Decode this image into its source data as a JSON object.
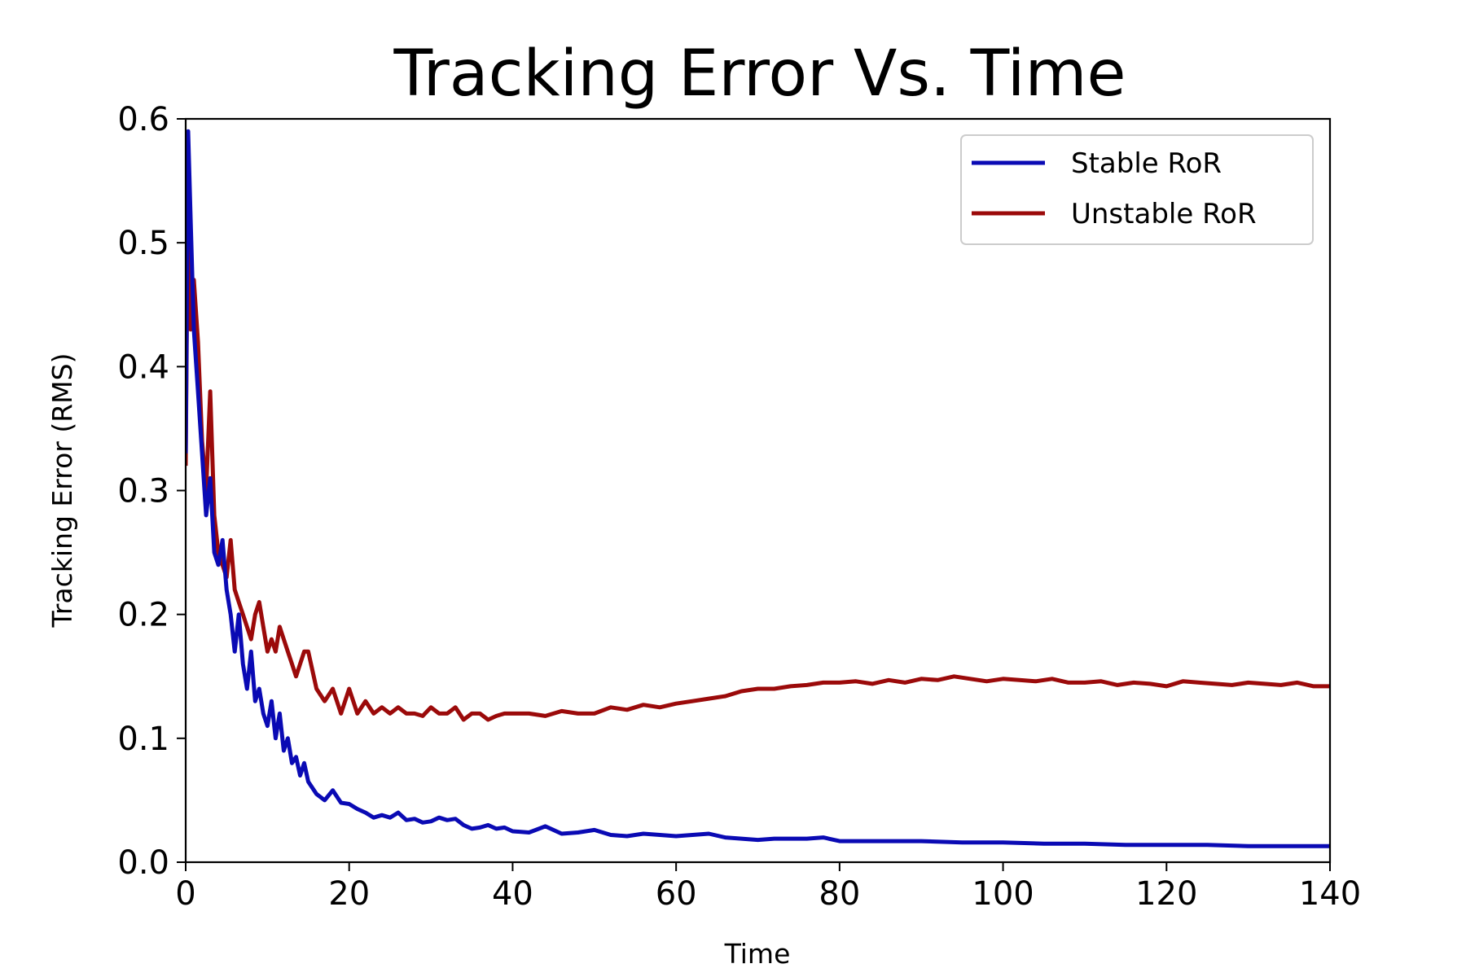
{
  "chart_data": {
    "type": "line",
    "title": "Tracking Error Vs. Time",
    "xlabel": "Time",
    "ylabel": "Tracking Error (RMS)",
    "xlim": [
      0,
      140
    ],
    "ylim": [
      0,
      0.6
    ],
    "xticks": [
      0,
      20,
      40,
      60,
      80,
      100,
      120,
      140
    ],
    "yticks": [
      0.0,
      0.1,
      0.2,
      0.3,
      0.4,
      0.5,
      0.6
    ],
    "xtick_labels": [
      "0",
      "20",
      "40",
      "60",
      "80",
      "100",
      "120",
      "140"
    ],
    "ytick_labels": [
      "0.0",
      "0.1",
      "0.2",
      "0.3",
      "0.4",
      "0.5",
      "0.6"
    ],
    "grid": false,
    "legend_position": "top-right",
    "series": [
      {
        "name": "Stable RoR",
        "color": "#0a0ab4",
        "x": [
          0,
          0.3,
          0.6,
          1,
          1.5,
          2,
          2.5,
          3,
          3.5,
          4,
          4.5,
          5,
          5.5,
          6,
          6.5,
          7,
          7.5,
          8,
          8.5,
          9,
          9.5,
          10,
          10.5,
          11,
          11.5,
          12,
          12.5,
          13,
          13.5,
          14,
          14.5,
          15,
          16,
          17,
          18,
          19,
          20,
          21,
          22,
          23,
          24,
          25,
          26,
          27,
          28,
          29,
          30,
          31,
          32,
          33,
          34,
          35,
          36,
          37,
          38,
          39,
          40,
          42,
          44,
          46,
          48,
          50,
          52,
          54,
          56,
          58,
          60,
          62,
          64,
          66,
          68,
          70,
          72,
          74,
          76,
          78,
          80,
          85,
          90,
          95,
          100,
          105,
          110,
          115,
          120,
          125,
          130,
          135,
          140
        ],
        "y": [
          0.33,
          0.59,
          0.52,
          0.43,
          0.38,
          0.33,
          0.28,
          0.31,
          0.25,
          0.24,
          0.26,
          0.22,
          0.2,
          0.17,
          0.2,
          0.16,
          0.14,
          0.17,
          0.13,
          0.14,
          0.12,
          0.11,
          0.13,
          0.1,
          0.12,
          0.09,
          0.1,
          0.08,
          0.085,
          0.07,
          0.08,
          0.065,
          0.055,
          0.05,
          0.058,
          0.048,
          0.047,
          0.043,
          0.04,
          0.036,
          0.038,
          0.036,
          0.04,
          0.034,
          0.035,
          0.032,
          0.033,
          0.036,
          0.034,
          0.035,
          0.03,
          0.027,
          0.028,
          0.03,
          0.027,
          0.028,
          0.025,
          0.024,
          0.029,
          0.023,
          0.024,
          0.026,
          0.022,
          0.021,
          0.023,
          0.022,
          0.021,
          0.022,
          0.023,
          0.02,
          0.019,
          0.018,
          0.019,
          0.019,
          0.019,
          0.02,
          0.017,
          0.017,
          0.017,
          0.016,
          0.016,
          0.015,
          0.015,
          0.014,
          0.014,
          0.014,
          0.013,
          0.013,
          0.013
        ]
      },
      {
        "name": "Unstable RoR",
        "color": "#9b0a0a",
        "x": [
          0,
          0.3,
          0.6,
          1,
          1.5,
          2,
          2.5,
          3,
          3.5,
          4,
          4.5,
          5,
          5.5,
          6,
          6.5,
          7,
          7.5,
          8,
          8.5,
          9,
          9.5,
          10,
          10.5,
          11,
          11.5,
          12,
          12.5,
          13,
          13.5,
          14,
          14.5,
          15,
          16,
          17,
          18,
          19,
          20,
          21,
          22,
          23,
          24,
          25,
          26,
          27,
          28,
          29,
          30,
          31,
          32,
          33,
          34,
          35,
          36,
          37,
          38,
          39,
          40,
          42,
          44,
          46,
          48,
          50,
          52,
          54,
          56,
          58,
          60,
          62,
          64,
          66,
          68,
          70,
          72,
          74,
          76,
          78,
          80,
          82,
          84,
          86,
          88,
          90,
          92,
          94,
          96,
          98,
          100,
          102,
          104,
          106,
          108,
          110,
          112,
          114,
          116,
          118,
          120,
          122,
          124,
          126,
          128,
          130,
          132,
          134,
          136,
          138,
          140
        ],
        "y": [
          0.32,
          0.56,
          0.43,
          0.47,
          0.42,
          0.34,
          0.3,
          0.38,
          0.28,
          0.25,
          0.24,
          0.23,
          0.26,
          0.22,
          0.21,
          0.2,
          0.19,
          0.18,
          0.2,
          0.21,
          0.19,
          0.17,
          0.18,
          0.17,
          0.19,
          0.18,
          0.17,
          0.16,
          0.15,
          0.16,
          0.17,
          0.17,
          0.14,
          0.13,
          0.14,
          0.12,
          0.14,
          0.12,
          0.13,
          0.12,
          0.125,
          0.12,
          0.125,
          0.12,
          0.12,
          0.118,
          0.125,
          0.12,
          0.12,
          0.125,
          0.115,
          0.12,
          0.12,
          0.115,
          0.118,
          0.12,
          0.12,
          0.12,
          0.118,
          0.122,
          0.12,
          0.12,
          0.125,
          0.123,
          0.127,
          0.125,
          0.128,
          0.13,
          0.132,
          0.134,
          0.138,
          0.14,
          0.14,
          0.142,
          0.143,
          0.145,
          0.145,
          0.146,
          0.144,
          0.147,
          0.145,
          0.148,
          0.147,
          0.15,
          0.148,
          0.146,
          0.148,
          0.147,
          0.146,
          0.148,
          0.145,
          0.145,
          0.146,
          0.143,
          0.145,
          0.144,
          0.142,
          0.146,
          0.145,
          0.144,
          0.143,
          0.145,
          0.144,
          0.143,
          0.145,
          0.142,
          0.142
        ]
      }
    ]
  }
}
